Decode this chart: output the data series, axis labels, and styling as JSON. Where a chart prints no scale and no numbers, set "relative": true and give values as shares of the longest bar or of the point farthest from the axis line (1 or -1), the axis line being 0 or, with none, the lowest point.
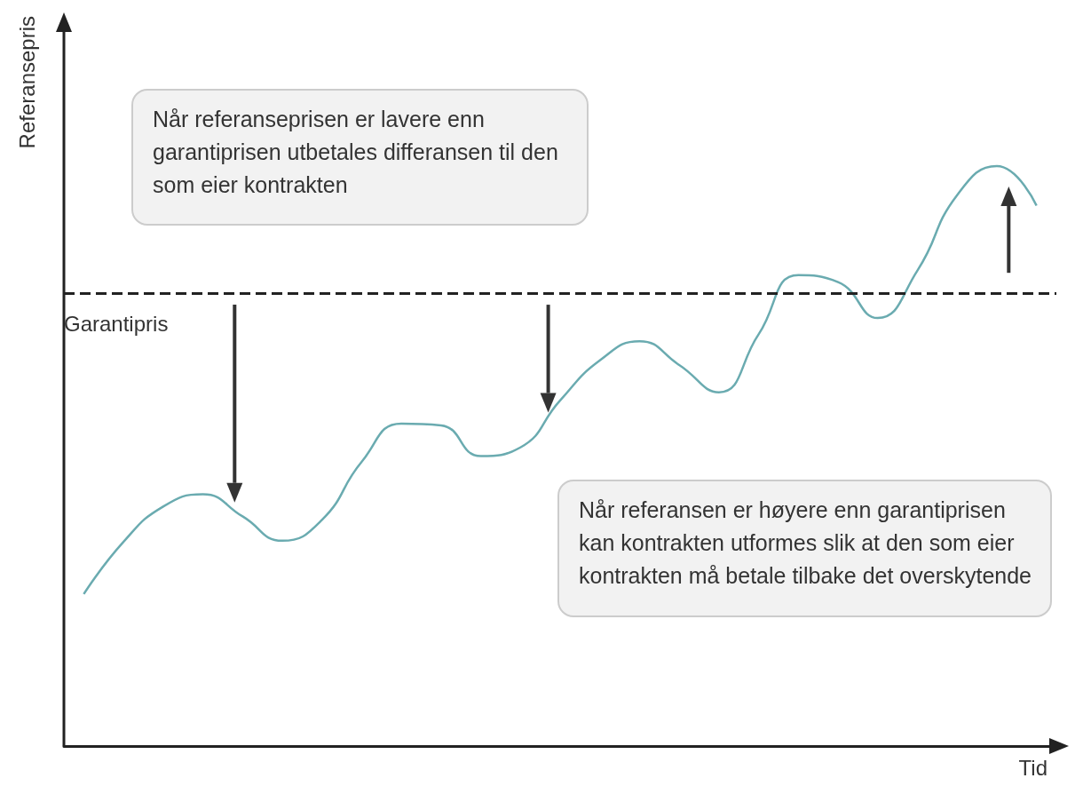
{
  "chart_data": {
    "type": "line",
    "relative": true,
    "xlabel": "Tid",
    "ylabel": "Referansepris",
    "categories": [
      null,
      null,
      null,
      null,
      null,
      null,
      null,
      null,
      null,
      null,
      null,
      null,
      null,
      null,
      null,
      null,
      null,
      null,
      null,
      null,
      null,
      null,
      null,
      null,
      null
    ],
    "series": [
      {
        "color": "#6aabb0",
        "values": [
          0.262,
          0.352,
          0.413,
          0.434,
          0.396,
          0.354,
          0.39,
          0.49,
          0.556,
          0.553,
          0.5,
          0.515,
          0.596,
          0.665,
          0.698,
          0.657,
          0.61,
          0.71,
          0.812,
          0.8,
          0.738,
          0.82,
          0.95,
          1,
          0.932
        ]
      }
    ],
    "ref_lines": [
      {
        "axis": "y",
        "value": 0.781,
        "label": "Garantipris",
        "color": "#222222",
        "line_style": "dashed"
      }
    ],
    "annotations": [
      "Når referanseprisen er lavere enn garantiprisen utbetales differansen til den som eier kontrakten",
      "Når referansen er høyere enn garantiprisen kan kontrakten utformes slik at den som eier kontrakten må betale tilbake det overskytende"
    ],
    "grid": false,
    "marker": "none",
    "line_style": "solid"
  }
}
